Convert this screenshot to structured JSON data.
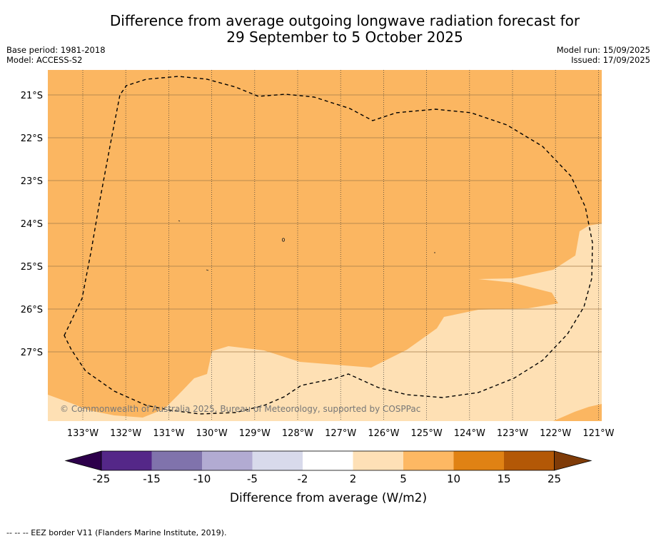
{
  "title": {
    "line1": "Difference from average outgoing longwave radiation forecast for",
    "line2": "29 September to 5 October 2025"
  },
  "meta": {
    "base_period": "Base period: 1981-2018",
    "model": "Model: ACCESS-S2",
    "model_run": "Model run: 15/09/2025",
    "issued": "Issued: 17/09/2025"
  },
  "map": {
    "latitude_labels": [
      "21°S",
      "22°S",
      "23°S",
      "24°S",
      "25°S",
      "26°S",
      "27°S"
    ],
    "longitude_labels": [
      "133°W",
      "132°W",
      "131°W",
      "130°W",
      "129°W",
      "128°W",
      "127°W",
      "126°W",
      "125°W",
      "124°W",
      "123°W",
      "122°W",
      "121°W"
    ],
    "copyright": "© Commonwealth of Australia 2025, Bureau of Meteorology, supported by COSPPac",
    "fill_colors": {
      "category_5_10": "#fbb661",
      "category_2_5": "#fee0b4"
    }
  },
  "colorbar": {
    "title": "Difference from average (W/m2)",
    "ticks": [
      "-25",
      "-15",
      "-10",
      "-5",
      "-2",
      "2",
      "5",
      "10",
      "15",
      "25"
    ],
    "under_color": "#2d004b",
    "over_color": "#7f3b08",
    "colors": [
      "#542788",
      "#8073ac",
      "#b2abd2",
      "#d8daeb",
      "#ffffff",
      "#fee0b6",
      "#fdb863",
      "#e08214",
      "#b35806"
    ]
  },
  "footnote": "--  --  -- EEZ border V11 (Flanders Marine Institute, 2019)."
}
